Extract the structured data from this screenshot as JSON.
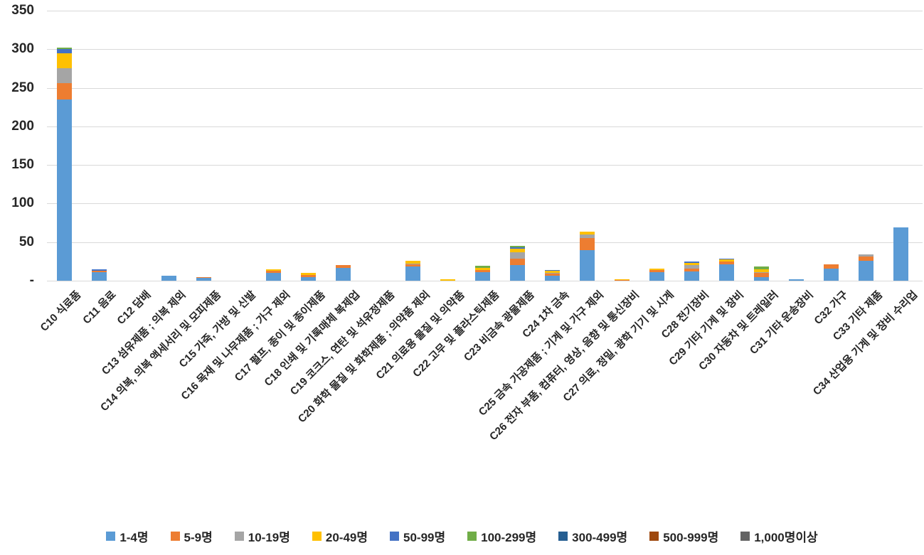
{
  "chart_data": {
    "type": "bar",
    "stacked": true,
    "title": "",
    "xlabel": "",
    "ylabel": "",
    "grid": true,
    "legend_position": "bottom",
    "y_axis": {
      "min": 0,
      "max": 350,
      "tick_interval": 50,
      "ticks": [
        {
          "label": "-",
          "value": 0
        },
        {
          "label": "50",
          "value": 50
        },
        {
          "label": "100",
          "value": 100
        },
        {
          "label": "150",
          "value": 150
        },
        {
          "label": "200",
          "value": 200
        },
        {
          "label": "250",
          "value": 250
        },
        {
          "label": "300",
          "value": 300
        },
        {
          "label": "350",
          "value": 350
        }
      ]
    },
    "categories": [
      "C10 식료품",
      "C11 음료",
      "C12 담배",
      "C13 섬유제품 ; 의복 제외",
      "C14 의복, 의복 액세서리 및 모피제품",
      "C15 가죽, 가방 및 신발",
      "C16 목재 및 나무제품 ; 가구 제외",
      "C17 펄프, 종이 및 종이제품",
      "C18 인쇄 및 기록매체 복제업",
      "C19 코크스, 연탄 및 석유정제품",
      "C20 화학 물질 및 화학제품 ; 의약품 제외",
      "C21 의료용 물질 및 의약품",
      "C22 고무 및 플라스틱제품",
      "C23 비금속 광물제품",
      "C24 1차 금속",
      "C25 금속 가공제품 ; 기계 및 가구 제외",
      "C26 전자 부품, 컴퓨터, 영상, 음향 및 통신장비",
      "C27 의료, 정밀, 광학 기기 및 시계",
      "C28 전기장비",
      "C29 기타 기계 및 장비",
      "C30 자동차 및 트레일러",
      "C31 기타 운송장비",
      "C32 가구",
      "C33 기타 제품",
      "C34 산업용 기계 및 장비 수리업"
    ],
    "series": [
      {
        "name": "1-4명",
        "color": "#5B9BD5",
        "values": [
          235,
          11,
          0,
          6,
          4,
          0,
          10,
          5,
          17,
          0,
          18,
          0,
          11,
          20,
          6,
          40,
          0,
          11,
          12,
          21,
          5,
          2,
          16,
          26,
          69
        ]
      },
      {
        "name": "5-9명",
        "color": "#ED7D31",
        "values": [
          21,
          2,
          0,
          0,
          1,
          0,
          3,
          2,
          3,
          0,
          3,
          0,
          3,
          9,
          3,
          15,
          1,
          3,
          4,
          4,
          5,
          0,
          5,
          5,
          0
        ]
      },
      {
        "name": "10-19명",
        "color": "#A5A5A5",
        "values": [
          19,
          0,
          0,
          0,
          0,
          0,
          0,
          0,
          0,
          0,
          1,
          0,
          0,
          8,
          1,
          5,
          0,
          0,
          4,
          0,
          1,
          0,
          0,
          3,
          0
        ]
      },
      {
        "name": "20-49명",
        "color": "#FFC000",
        "values": [
          20,
          0,
          0,
          0,
          0,
          0,
          2,
          3,
          0,
          0,
          4,
          2,
          3,
          4,
          3,
          4,
          1,
          2,
          3,
          3,
          4,
          0,
          0,
          0,
          0
        ]
      },
      {
        "name": "50-99명",
        "color": "#4472C4",
        "values": [
          5,
          2,
          0,
          0,
          0,
          0,
          0,
          0,
          0,
          0,
          0,
          0,
          0,
          2,
          1,
          0,
          0,
          0,
          2,
          1,
          0,
          0,
          0,
          0,
          0
        ]
      },
      {
        "name": "100-299명",
        "color": "#70AD47",
        "values": [
          2,
          0,
          0,
          0,
          0,
          0,
          0,
          0,
          0,
          0,
          0,
          0,
          2,
          2,
          0,
          0,
          0,
          0,
          0,
          0,
          3,
          0,
          0,
          0,
          0
        ]
      },
      {
        "name": "300-499명",
        "color": "#255E91",
        "values": [
          0,
          0,
          0,
          0,
          0,
          0,
          0,
          0,
          0,
          0,
          0,
          0,
          0,
          0,
          0,
          0,
          0,
          0,
          0,
          0,
          0,
          0,
          0,
          0,
          0
        ]
      },
      {
        "name": "500-999명",
        "color": "#9E480E",
        "values": [
          0,
          0,
          0,
          0,
          0,
          0,
          0,
          0,
          0,
          0,
          0,
          0,
          0,
          0,
          0,
          0,
          0,
          0,
          0,
          0,
          0,
          0,
          0,
          0,
          0
        ]
      },
      {
        "name": "1,000명이상",
        "color": "#636363",
        "values": [
          0,
          0,
          0,
          0,
          0,
          0,
          0,
          0,
          0,
          0,
          0,
          0,
          0,
          0,
          0,
          0,
          0,
          0,
          0,
          0,
          0,
          0,
          0,
          0,
          0
        ]
      }
    ]
  }
}
